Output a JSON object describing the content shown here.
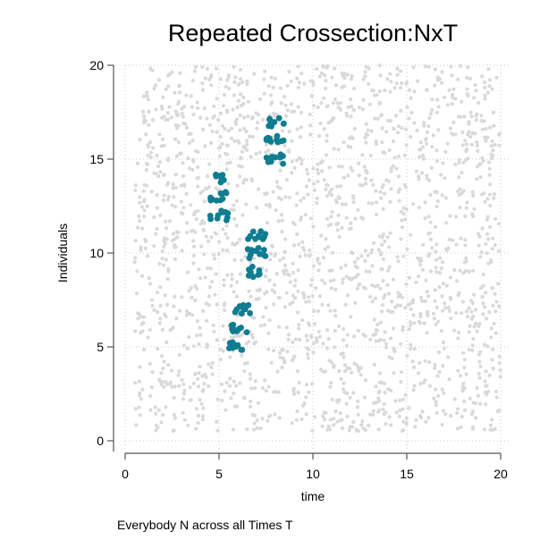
{
  "chart_data": {
    "type": "scatter",
    "title": "Repeated Crossection:NxT",
    "xlabel": "time",
    "ylabel": "Individuals",
    "note": "Everybody N across all Times T",
    "xlim": [
      0,
      20
    ],
    "ylim": [
      0,
      20
    ],
    "xticks": [
      "0",
      "5",
      "10",
      "15",
      "20"
    ],
    "yticks": [
      "0",
      "5",
      "10",
      "15",
      "20"
    ],
    "grid": true,
    "background_series": {
      "description": "all individuals at all times (jittered)",
      "x_range": [
        0.5,
        20
      ],
      "y_range": [
        0.5,
        20
      ],
      "color": "#d9d9d9"
    },
    "highlight_series": {
      "color": "#0e7d91",
      "clusters": [
        {
          "x": 6.0,
          "y": 5.0
        },
        {
          "x": 6.1,
          "y": 6.0
        },
        {
          "x": 6.2,
          "y": 7.0
        },
        {
          "x": 7.0,
          "y": 9.0
        },
        {
          "x": 7.0,
          "y": 10.0
        },
        {
          "x": 7.0,
          "y": 11.0
        },
        {
          "x": 5.0,
          "y": 12.0
        },
        {
          "x": 5.0,
          "y": 13.0
        },
        {
          "x": 5.0,
          "y": 14.0
        },
        {
          "x": 8.0,
          "y": 15.0
        },
        {
          "x": 8.0,
          "y": 16.0
        },
        {
          "x": 8.0,
          "y": 17.0
        }
      ]
    }
  }
}
